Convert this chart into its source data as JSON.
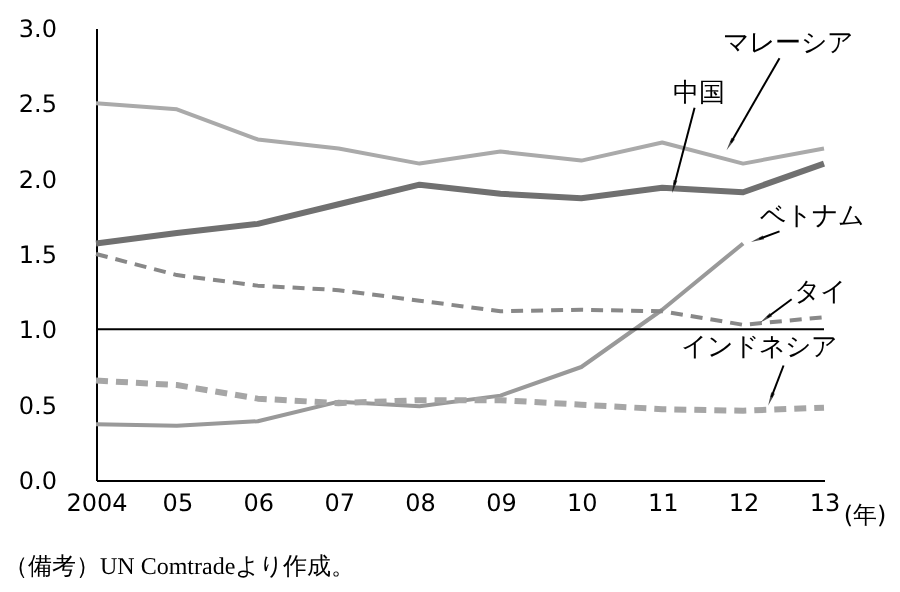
{
  "chart_data": {
    "type": "line",
    "x": [
      2004,
      2005,
      2006,
      2007,
      2008,
      2009,
      2010,
      2011,
      2012,
      2013
    ],
    "xlim": [
      2004,
      2013
    ],
    "xticks": [
      2004,
      {
        "value": 2005,
        "label": "05"
      },
      {
        "value": 2006,
        "label": "06"
      },
      {
        "value": 2007,
        "label": "07"
      },
      {
        "value": 2008,
        "label": "08"
      },
      {
        "value": 2009,
        "label": "09"
      },
      {
        "value": 2010,
        "label": "10"
      },
      {
        "value": 2011,
        "label": "11"
      },
      {
        "value": 2012,
        "label": "12"
      },
      {
        "value": 2013,
        "label": "13"
      }
    ],
    "xlabel": "(年)",
    "ylim": [
      0,
      3
    ],
    "yticks": [
      {
        "value": 0,
        "label": "0.0"
      },
      {
        "value": 0.5,
        "label": "0.5"
      },
      {
        "value": 1,
        "label": "1.0"
      },
      {
        "value": 1.5,
        "label": "1.5"
      },
      {
        "value": 2,
        "label": "2.0"
      },
      {
        "value": 2.5,
        "label": "2.5"
      },
      {
        "value": 3,
        "label": "3.0"
      }
    ],
    "marker": "none",
    "series": [
      {
        "name": "マレーシア",
        "color": "#aaaaaa",
        "line_style": "solid",
        "values": [
          2.5,
          2.46,
          2.26,
          2.2,
          2.1,
          2.18,
          2.12,
          2.24,
          2.1,
          2.2
        ]
      },
      {
        "name": "中国",
        "color": "#707070",
        "line_style": "solid",
        "values": [
          1.57,
          1.64,
          1.7,
          1.83,
          1.96,
          1.9,
          1.87,
          1.94,
          1.91,
          2.1
        ]
      },
      {
        "name": "ベトナム",
        "color": "#999999",
        "line_style": "solid",
        "values": [
          0.37,
          0.36,
          0.39,
          0.52,
          0.49,
          0.56,
          0.75,
          1.13,
          1.57,
          null
        ]
      },
      {
        "name": "タイ",
        "color": "#888888",
        "line_style": "dashed",
        "values": [
          1.5,
          1.36,
          1.29,
          1.26,
          1.19,
          1.12,
          1.13,
          1.12,
          1.03,
          1.08
        ]
      },
      {
        "name": "インドネシア",
        "color": "#a6a6a6",
        "line_style": "dashed",
        "values": [
          0.66,
          0.63,
          0.54,
          0.51,
          0.53,
          0.53,
          0.5,
          0.47,
          0.46,
          0.48
        ]
      }
    ],
    "ref_lines": [
      {
        "axis": "y",
        "value": 1,
        "color": "#000000",
        "line_style": "solid"
      }
    ],
    "annotations": [
      "（備考）UN Comtradeより作成。"
    ]
  }
}
